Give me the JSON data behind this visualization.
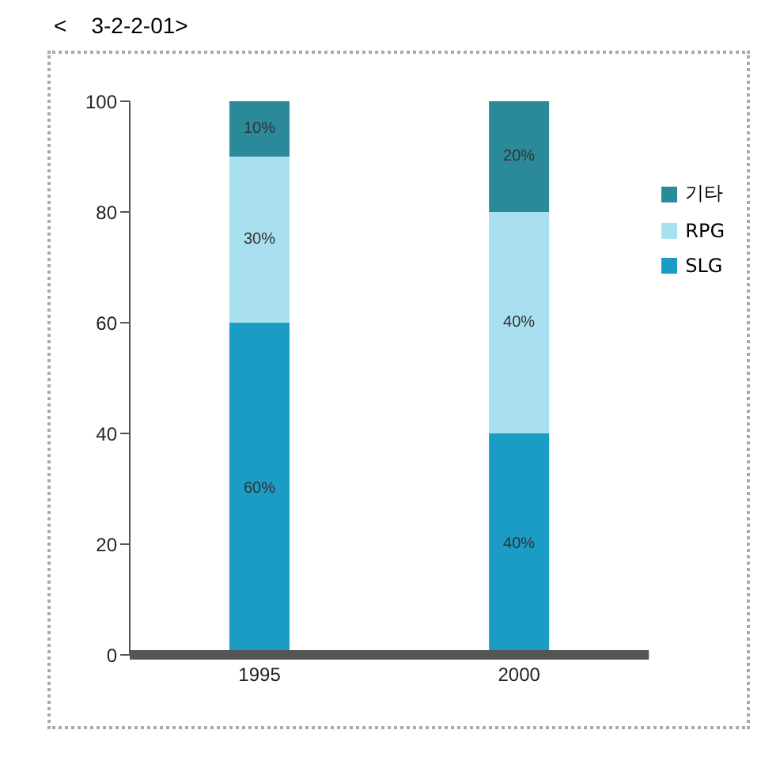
{
  "chart_data": {
    "type": "bar",
    "title": "<    3-2-2-01>",
    "categories": [
      "1995",
      "2000"
    ],
    "stacked": true,
    "series": [
      {
        "name": "SLG",
        "color": "#1a9cc4",
        "values": [
          60,
          40
        ],
        "value_labels": [
          "60%",
          "40%"
        ]
      },
      {
        "name": "RPG",
        "color": "#a8e0f0",
        "values": [
          30,
          40
        ],
        "value_labels": [
          "30%",
          "40%"
        ]
      },
      {
        "name": "기타",
        "color": "#2a8a9a",
        "values": [
          10,
          20
        ],
        "value_labels": [
          "10%",
          "20%"
        ]
      }
    ],
    "ylim": [
      0,
      100
    ],
    "yticks": [
      0,
      20,
      40,
      60,
      80,
      100
    ],
    "grid": false,
    "legend": "top right"
  }
}
